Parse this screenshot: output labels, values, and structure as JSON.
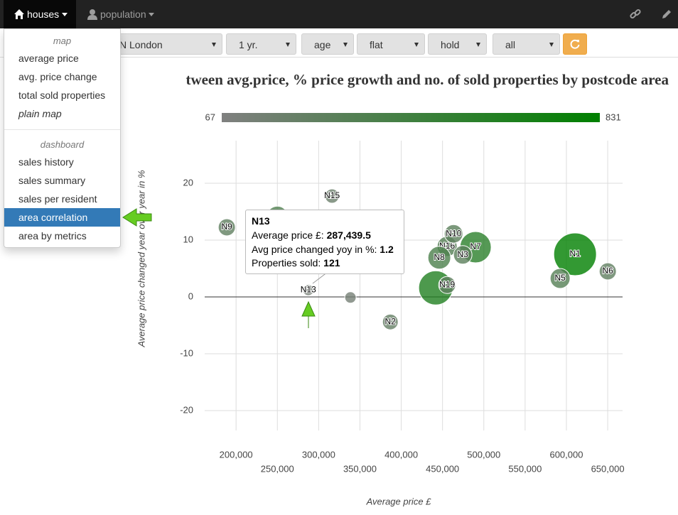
{
  "nav": {
    "items": [
      "houses",
      "population"
    ]
  },
  "menu": {
    "sections": [
      {
        "header": "map",
        "items": [
          "average price",
          "avg. price change",
          "total sold properties",
          "plain map"
        ]
      },
      {
        "header": "dashboard",
        "items": [
          "sales history",
          "sales summary",
          "sales per resident",
          "area correlation",
          "area by metrics"
        ]
      }
    ]
  },
  "filters": [
    "N London",
    "1 yr.",
    "age",
    "flat",
    "hold",
    "all"
  ],
  "tooltip": {
    "title": "N13",
    "rows": [
      {
        "label": "Average price £:",
        "value": "287,439.5"
      },
      {
        "label": "Avg price changed yoy in %:",
        "value": "1.2"
      },
      {
        "label": "Properties sold:",
        "value": "121"
      }
    ]
  },
  "chart_data": {
    "type": "bubble",
    "title": "tween avg.price, % price growth and no. of sold properties by postcode area",
    "x_label": "Average price £",
    "y_label": "Average price changed year over year in %",
    "labels": [
      "N9",
      null,
      "N15",
      "N13",
      null,
      "N2",
      "N16",
      "N10",
      "N7",
      "N3",
      "N8",
      null,
      "N19",
      "N1",
      "N5",
      "N6"
    ],
    "x": [
      188800,
      250000,
      316200,
      287439.5,
      338500,
      386800,
      455600,
      463400,
      490000,
      474500,
      446100,
      441800,
      455600,
      610500,
      592400,
      650100
    ],
    "values": [
      12.25,
      14.1,
      17.75,
      1.2,
      -0.1,
      -4.4,
      8.9,
      11.1,
      8.75,
      7.4,
      6.9,
      1.6,
      2.1,
      7.5,
      3.25,
      4.5
    ],
    "sizes": [
      258,
      353,
      194,
      121,
      131,
      226,
      322,
      290,
      576,
      290,
      385,
      640,
      258,
      831,
      322,
      258
    ],
    "colorscale": {
      "min": 67,
      "max": 831,
      "min_color": "#808080",
      "max_color": "#008000"
    },
    "xlim": [
      162000,
      668000
    ],
    "ylim": [
      -23.5,
      27.5
    ],
    "xticks": [
      {
        "value": 200000,
        "label": "200,000"
      },
      {
        "value": 250000,
        "label": "250,000"
      },
      {
        "value": 300000,
        "label": "300,000"
      },
      {
        "value": 350000,
        "label": "350,000"
      },
      {
        "value": 400000,
        "label": "400,000"
      },
      {
        "value": 450000,
        "label": "450,000"
      },
      {
        "value": 500000,
        "label": "500,000"
      },
      {
        "value": 550000,
        "label": "550,000"
      },
      {
        "value": 600000,
        "label": "600,000"
      },
      {
        "value": 650000,
        "label": "650,000"
      }
    ],
    "yticks": [
      20,
      10,
      0,
      -10,
      -20
    ],
    "grid": true
  }
}
